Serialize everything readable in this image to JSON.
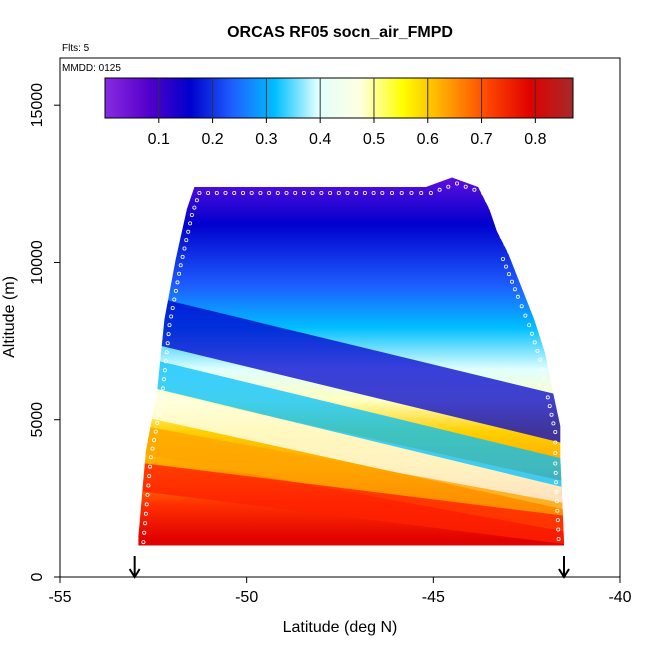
{
  "chart_data": {
    "type": "heatmap",
    "title": "ORCAS RF05 socn_air_FMPD",
    "xlabel": "Latitude (deg N)",
    "ylabel": "Altitude (m)",
    "xlim": [
      -55,
      -40
    ],
    "ylim": [
      0,
      16500
    ],
    "x_ticks": [
      "-55",
      "-50",
      "-45",
      "-40"
    ],
    "y_ticks": [
      "0",
      "5000",
      "10000",
      "15000"
    ],
    "annotations": {
      "flights": "Flts: 5",
      "date": "MMDD: 0125"
    },
    "colorbar": {
      "range": [
        0,
        0.87
      ],
      "ticks": [
        "0.1",
        "0.2",
        "0.3",
        "0.4",
        "0.5",
        "0.6",
        "0.7",
        "0.8"
      ],
      "colors": [
        "#8a2be2",
        "#5500cc",
        "#0000cd",
        "#1e5fff",
        "#00bfff",
        "#e0ffff",
        "#ffffe0",
        "#ffff00",
        "#ffa500",
        "#ff4500",
        "#e00000",
        "#a52a2a"
      ]
    },
    "profile_top": [
      [
        -52.9,
        1300
      ],
      [
        -52.7,
        4000
      ],
      [
        -52.4,
        5900
      ],
      [
        -52.2,
        8200
      ],
      [
        -51.9,
        10100
      ],
      [
        -51.6,
        11700
      ],
      [
        -51.4,
        12400
      ],
      [
        -50,
        12400
      ],
      [
        -46.5,
        12400
      ],
      [
        -45.2,
        12400
      ],
      [
        -44.5,
        12700
      ],
      [
        -43.8,
        12400
      ],
      [
        -43.5,
        11700
      ],
      [
        -43.3,
        11000
      ],
      [
        -43,
        10300
      ],
      [
        -42.6,
        9100
      ],
      [
        -42.3,
        8200
      ],
      [
        -42.0,
        7100
      ],
      [
        -41.8,
        5900
      ],
      [
        -41.6,
        4800
      ],
      [
        -41.6,
        3800
      ],
      [
        -41.5,
        1100
      ]
    ],
    "flight_markers": [
      -53.0,
      -41.5
    ]
  }
}
